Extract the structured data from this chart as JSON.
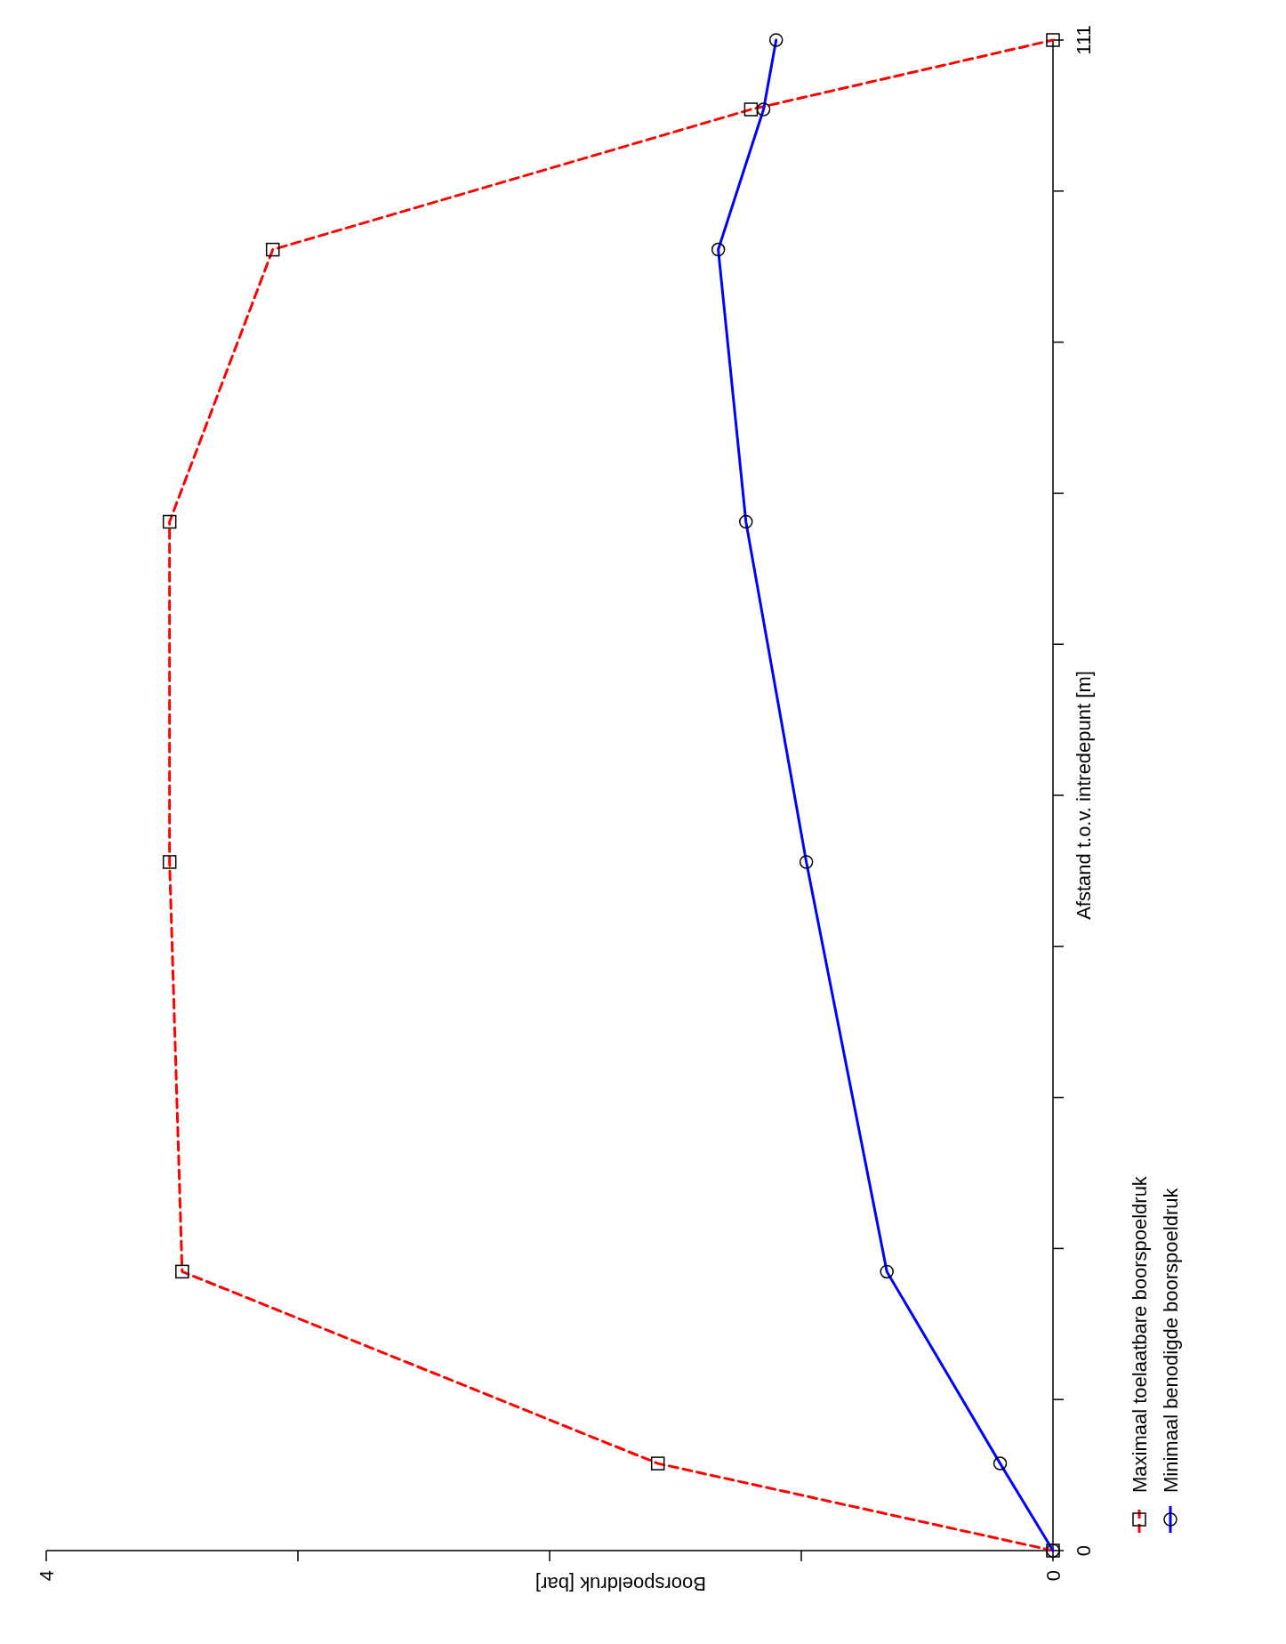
{
  "chart_data": {
    "type": "line",
    "xlabel": "Boorspoeldruk [bar]",
    "ylabel": "Afstand t.o.v. intredepunt [m]",
    "xlim": [
      4,
      0
    ],
    "ylim": [
      0,
      111
    ],
    "xticks": [
      4,
      {
        "value": 3,
        "label": null
      },
      {
        "value": 2,
        "label": null
      },
      {
        "value": 1,
        "label": null
      },
      0
    ],
    "yticks": [
      0,
      {
        "value": 11.1,
        "label": null
      },
      {
        "value": 22.2,
        "label": null
      },
      {
        "value": 33.3,
        "label": null
      },
      {
        "value": 44.4,
        "label": null
      },
      {
        "value": 55.5,
        "label": null
      },
      {
        "value": 66.6,
        "label": null
      },
      {
        "value": 77.7,
        "label": null
      },
      {
        "value": 88.8,
        "label": null
      },
      {
        "value": 99.9,
        "label": null
      },
      111
    ],
    "series": [
      {
        "name": "Maximaal toelaatbare boorspoeldruk",
        "color": "#ff0000",
        "marker": "square",
        "line_style": "dashed",
        "x": [
          0,
          1.57,
          3.46,
          3.51,
          3.51,
          3.1,
          1.2,
          0
        ],
        "values": [
          0,
          6.4,
          20.5,
          50.6,
          75.6,
          95.6,
          105.9,
          111
        ]
      },
      {
        "name": "Minimaal benodigde boorspoeldruk",
        "color": "#0000ff",
        "marker": "circle",
        "line_style": "solid",
        "x": [
          0,
          0.21,
          0.66,
          0.98,
          1.22,
          1.33,
          1.15,
          1.1
        ],
        "values": [
          0,
          6.4,
          20.5,
          50.6,
          75.6,
          95.6,
          105.9,
          111
        ]
      }
    ],
    "legend": "bottom right",
    "grid": false
  }
}
